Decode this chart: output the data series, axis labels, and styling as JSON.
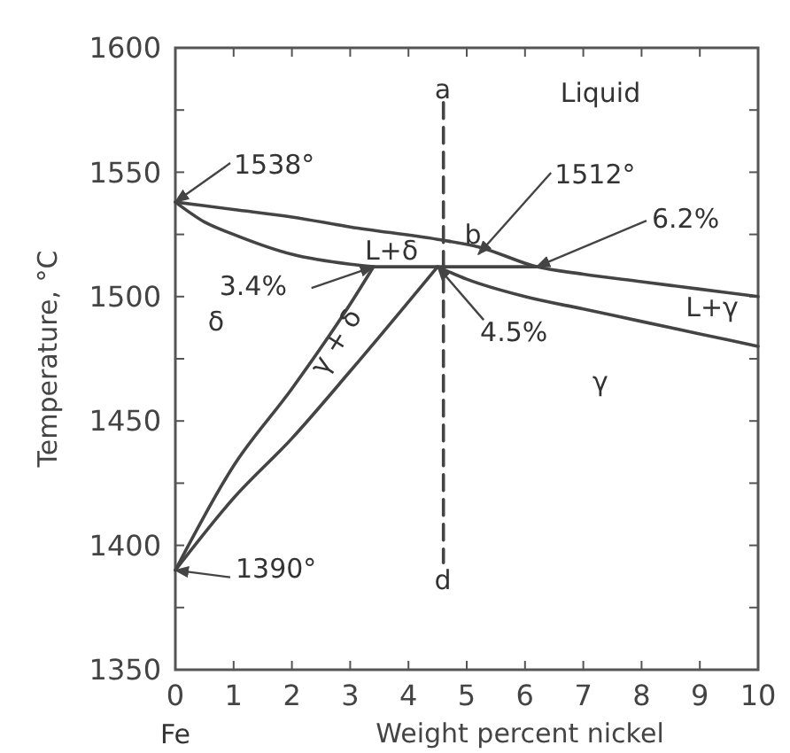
{
  "chart_data": {
    "type": "line",
    "xlabel": "Weight percent nickel",
    "ylabel": "Temperature, °C",
    "xlim": [
      0,
      10
    ],
    "ylim": [
      1350,
      1600
    ],
    "xticks": [
      0,
      1,
      2,
      3,
      4,
      5,
      6,
      7,
      8,
      9,
      10
    ],
    "yticks": [
      1350,
      {
        "value": 1375,
        "label": null
      },
      1400,
      {
        "value": 1425,
        "label": null
      },
      1450,
      {
        "value": 1475,
        "label": null
      },
      1500,
      {
        "value": 1525,
        "label": null
      },
      1550,
      {
        "value": 1575,
        "label": null
      },
      1600
    ],
    "grid": false,
    "marker": "none",
    "line_style": "solid",
    "series": [
      {
        "color": "#444444",
        "x": [
          0,
          1,
          2,
          3,
          4.5,
          5.2,
          6.2,
          7,
          8,
          9,
          10
        ],
        "values": [
          1538,
          1535,
          1532,
          1528,
          1523,
          1520,
          1512,
          1509,
          1506,
          1503,
          1500
        ]
      },
      {
        "color": "#444444",
        "x": [
          0,
          0.5,
          1,
          2,
          3,
          3.4
        ],
        "values": [
          1538,
          1530,
          1525,
          1517,
          1513,
          1512
        ]
      },
      {
        "color": "#444444",
        "x": [
          3.4,
          6.2
        ],
        "values": [
          1512,
          1512
        ]
      },
      {
        "color": "#444444",
        "x": [
          0,
          1,
          2,
          3,
          3.4
        ],
        "values": [
          1390,
          1432,
          1463,
          1497,
          1512
        ]
      },
      {
        "color": "#444444",
        "x": [
          0,
          1,
          2,
          3,
          4.5
        ],
        "values": [
          1390,
          1419,
          1443,
          1470,
          1512
        ]
      },
      {
        "color": "#444444",
        "x": [
          4.5,
          5,
          6,
          7,
          8,
          9,
          10
        ],
        "values": [
          1512,
          1507,
          1500,
          1495,
          1490,
          1485,
          1480
        ]
      },
      {
        "color": "#444444",
        "x": [
          4.6,
          4.6
        ],
        "values": [
          1578,
          1393
        ],
        "line_style": "dashed"
      }
    ],
    "annotations": [
      "Liquid",
      "a",
      "b",
      "d",
      {
        "text": "1538°",
        "x": 0,
        "y": 1538
      },
      {
        "text": "1512°",
        "x": 5.2,
        "y": 1517
      },
      {
        "text": "6.2%",
        "x": 6.2,
        "y": 1512
      },
      {
        "text": "3.4%",
        "x": 3.4,
        "y": 1512
      },
      {
        "text": "4.5%",
        "x": 4.5,
        "y": 1512
      },
      {
        "text": "1390°",
        "x": 0,
        "y": 1390
      },
      "L+δ",
      "δ",
      {
        "text": "γ + δ",
        "x": 2.75,
        "y": 1482
      },
      "γ",
      "L+γ",
      "Fe"
    ]
  }
}
